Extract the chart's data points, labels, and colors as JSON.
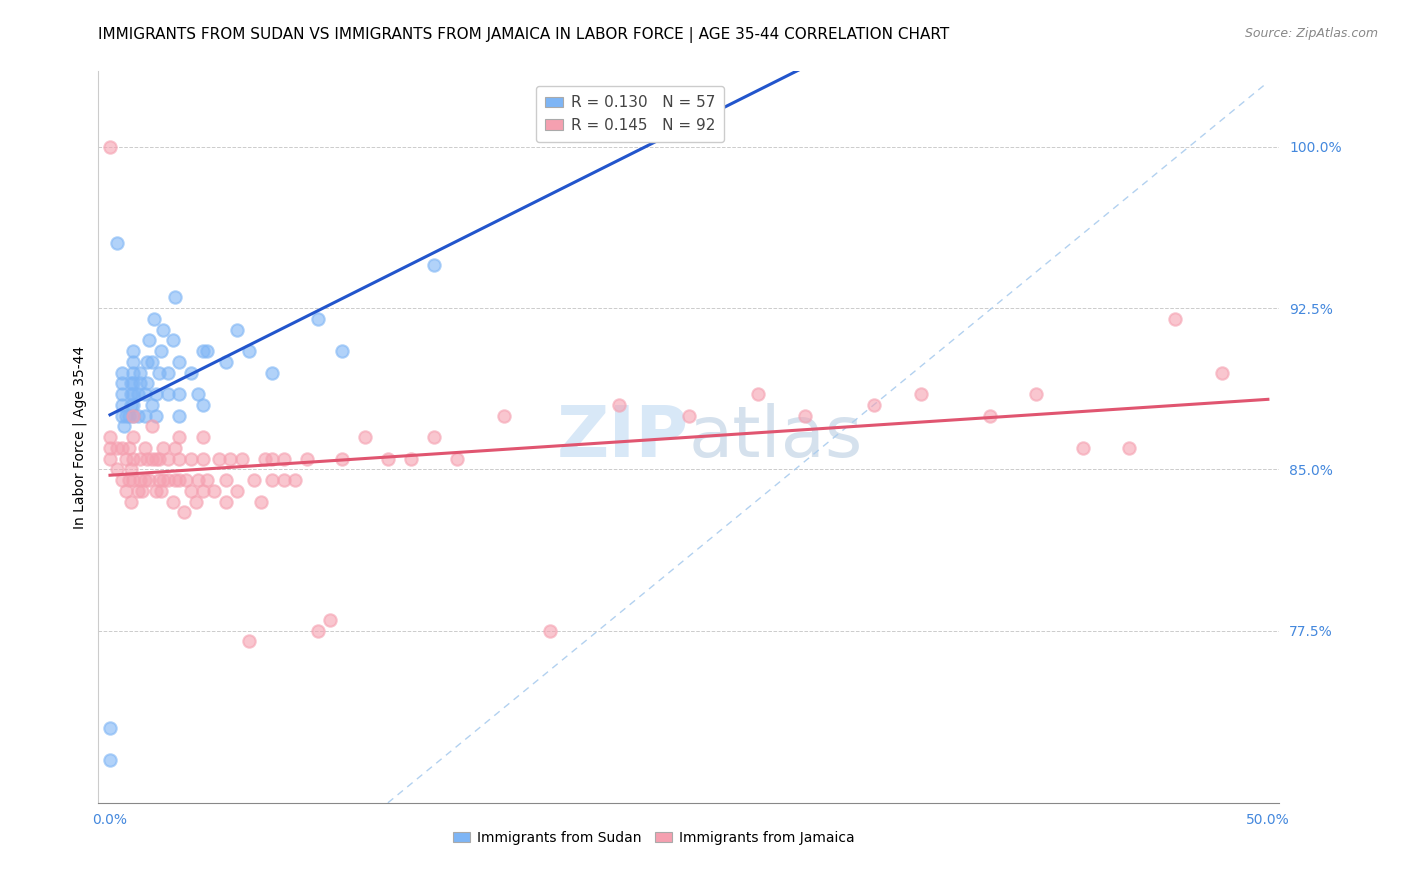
{
  "title": "IMMIGRANTS FROM SUDAN VS IMMIGRANTS FROM JAMAICA IN LABOR FORCE | AGE 35-44 CORRELATION CHART",
  "source": "Source: ZipAtlas.com",
  "ylabel": "In Labor Force | Age 35-44",
  "xlim": [
    -0.005,
    0.505
  ],
  "ylim": [
    0.695,
    1.035
  ],
  "xtick_labels": [
    "0.0%",
    "50.0%"
  ],
  "xtick_vals": [
    0.0,
    0.5
  ],
  "ytick_labels": [
    "77.5%",
    "85.0%",
    "92.5%",
    "100.0%"
  ],
  "ytick_vals": [
    0.775,
    0.85,
    0.925,
    1.0
  ],
  "sudan_color": "#7eb5f5",
  "jamaica_color": "#f5a0b0",
  "sudan_line_color": "#2255cc",
  "jamaica_line_color": "#e05570",
  "diagonal_color": "#aaccee",
  "r_sudan": 0.13,
  "n_sudan": 57,
  "r_jamaica": 0.145,
  "n_jamaica": 92,
  "sudan_x": [
    0.0,
    0.0,
    0.003,
    0.005,
    0.005,
    0.005,
    0.005,
    0.005,
    0.006,
    0.007,
    0.008,
    0.009,
    0.009,
    0.009,
    0.01,
    0.01,
    0.01,
    0.01,
    0.01,
    0.01,
    0.01,
    0.012,
    0.012,
    0.013,
    0.013,
    0.015,
    0.015,
    0.016,
    0.016,
    0.017,
    0.018,
    0.018,
    0.019,
    0.02,
    0.02,
    0.021,
    0.022,
    0.023,
    0.025,
    0.025,
    0.027,
    0.028,
    0.03,
    0.03,
    0.03,
    0.035,
    0.038,
    0.04,
    0.04,
    0.042,
    0.05,
    0.055,
    0.06,
    0.07,
    0.09,
    0.1,
    0.14
  ],
  "sudan_y": [
    0.715,
    0.73,
    0.955,
    0.875,
    0.88,
    0.885,
    0.89,
    0.895,
    0.87,
    0.875,
    0.875,
    0.88,
    0.885,
    0.89,
    0.875,
    0.88,
    0.885,
    0.89,
    0.895,
    0.9,
    0.905,
    0.875,
    0.885,
    0.89,
    0.895,
    0.875,
    0.885,
    0.89,
    0.9,
    0.91,
    0.88,
    0.9,
    0.92,
    0.875,
    0.885,
    0.895,
    0.905,
    0.915,
    0.885,
    0.895,
    0.91,
    0.93,
    0.875,
    0.885,
    0.9,
    0.895,
    0.885,
    0.88,
    0.905,
    0.905,
    0.9,
    0.915,
    0.905,
    0.895,
    0.92,
    0.905,
    0.945
  ],
  "jamaica_x": [
    0.0,
    0.0,
    0.0,
    0.0,
    0.003,
    0.003,
    0.005,
    0.005,
    0.007,
    0.007,
    0.008,
    0.008,
    0.009,
    0.009,
    0.01,
    0.01,
    0.01,
    0.01,
    0.012,
    0.013,
    0.013,
    0.014,
    0.015,
    0.015,
    0.016,
    0.017,
    0.018,
    0.018,
    0.02,
    0.02,
    0.021,
    0.021,
    0.022,
    0.023,
    0.023,
    0.025,
    0.025,
    0.027,
    0.028,
    0.028,
    0.03,
    0.03,
    0.03,
    0.032,
    0.033,
    0.035,
    0.035,
    0.037,
    0.038,
    0.04,
    0.04,
    0.04,
    0.042,
    0.045,
    0.047,
    0.05,
    0.05,
    0.052,
    0.055,
    0.057,
    0.06,
    0.062,
    0.065,
    0.067,
    0.07,
    0.07,
    0.075,
    0.075,
    0.08,
    0.085,
    0.09,
    0.095,
    0.1,
    0.11,
    0.12,
    0.13,
    0.14,
    0.15,
    0.17,
    0.19,
    0.22,
    0.25,
    0.28,
    0.3,
    0.33,
    0.35,
    0.38,
    0.4,
    0.42,
    0.44,
    0.46,
    0.48
  ],
  "jamaica_y": [
    0.855,
    0.86,
    0.865,
    1.0,
    0.85,
    0.86,
    0.845,
    0.86,
    0.84,
    0.855,
    0.845,
    0.86,
    0.835,
    0.85,
    0.845,
    0.855,
    0.865,
    0.875,
    0.84,
    0.845,
    0.855,
    0.84,
    0.845,
    0.86,
    0.855,
    0.845,
    0.855,
    0.87,
    0.84,
    0.855,
    0.845,
    0.855,
    0.84,
    0.845,
    0.86,
    0.845,
    0.855,
    0.835,
    0.845,
    0.86,
    0.845,
    0.855,
    0.865,
    0.83,
    0.845,
    0.84,
    0.855,
    0.835,
    0.845,
    0.84,
    0.855,
    0.865,
    0.845,
    0.84,
    0.855,
    0.835,
    0.845,
    0.855,
    0.84,
    0.855,
    0.77,
    0.845,
    0.835,
    0.855,
    0.845,
    0.855,
    0.845,
    0.855,
    0.845,
    0.855,
    0.775,
    0.78,
    0.855,
    0.865,
    0.855,
    0.855,
    0.865,
    0.855,
    0.875,
    0.775,
    0.88,
    0.875,
    0.885,
    0.875,
    0.88,
    0.885,
    0.875,
    0.885,
    0.86,
    0.86,
    0.92,
    0.895
  ],
  "watermark_zip": "ZIP",
  "watermark_atlas": "atlas",
  "title_fontsize": 11,
  "label_fontsize": 10,
  "tick_fontsize": 10,
  "tick_color": "#4488dd"
}
